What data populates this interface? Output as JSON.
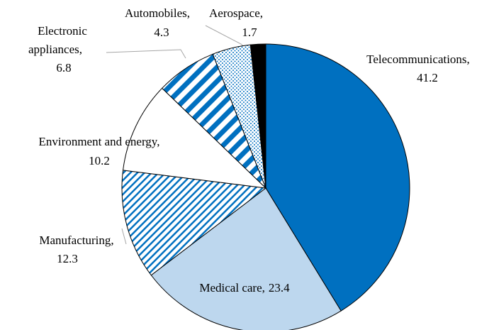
{
  "chart_data": {
    "type": "pie",
    "categories": [
      "Telecommunications,",
      "Medical care,",
      "Manufacturing,",
      "Environment and energy,",
      "Electronic appliances,",
      "Automobiles,",
      "Aerospace,"
    ],
    "values": [
      41.2,
      23.4,
      12.3,
      10.2,
      6.8,
      4.3,
      1.7
    ],
    "colors": [
      "#0070c0",
      "#bdd7ee",
      "#0070c0",
      "#ffffff",
      "#0070c0",
      "#0070c0",
      "#000000"
    ],
    "patterns": [
      "solid",
      "solid",
      "light-stripes",
      "solid",
      "wide-stripes",
      "dots",
      "solid"
    ]
  }
}
